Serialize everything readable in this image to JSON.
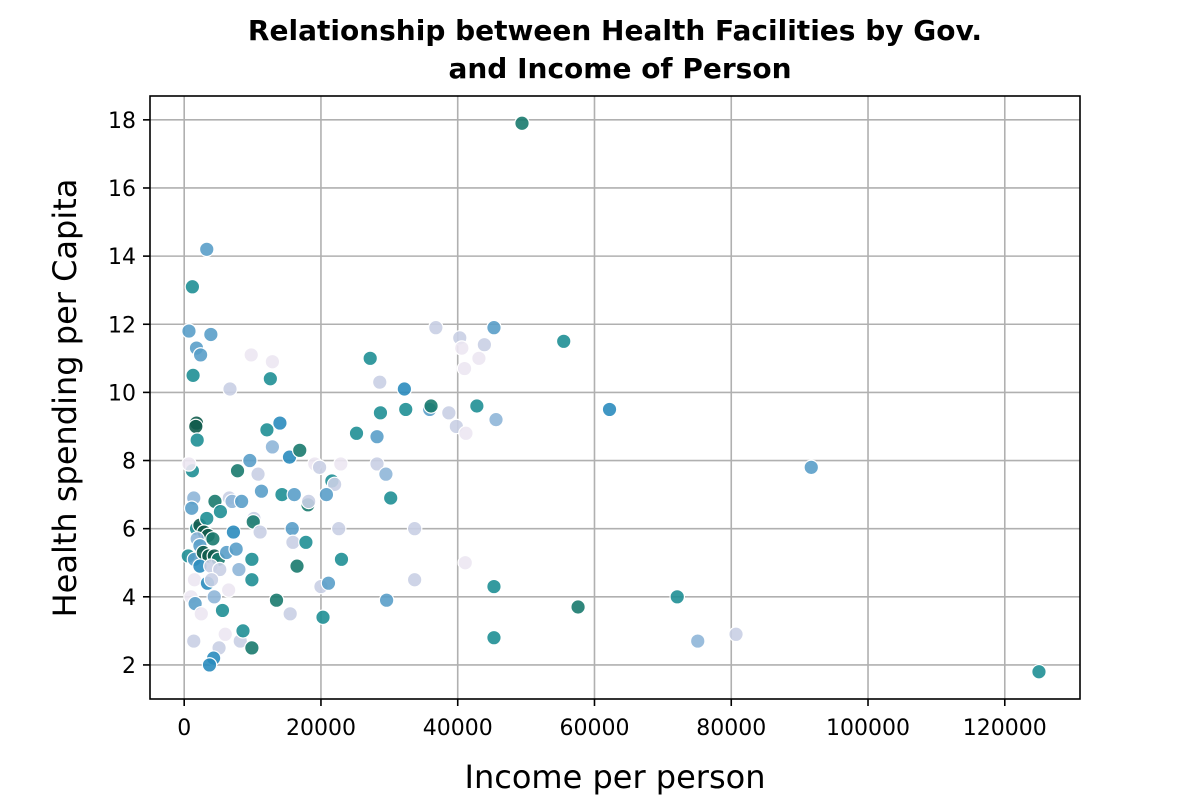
{
  "chart_data": {
    "type": "scatter",
    "title_line1": "Relationship between Health Facilities by Gov.",
    "title_line2": "and Income of Person",
    "xlabel": "Income per person",
    "ylabel": "Health spending per Capita",
    "xlim": [
      -5000,
      131000
    ],
    "ylim": [
      1.0,
      18.7
    ],
    "x_ticks": [
      0,
      20000,
      40000,
      60000,
      80000,
      100000,
      120000
    ],
    "x_tick_labels": [
      "0",
      "20000",
      "40000",
      "60000",
      "80000",
      "100000",
      "120000"
    ],
    "y_ticks": [
      2,
      4,
      6,
      8,
      10,
      12,
      14,
      16,
      18
    ],
    "y_tick_labels": [
      "2",
      "4",
      "6",
      "8",
      "10",
      "12",
      "14",
      "16",
      "18"
    ],
    "grid": true,
    "colors": {
      "very_light": "#ece7f2",
      "light": "#c9cfe4",
      "light_blue": "#8fb6d8",
      "mid_blue": "#5a9ec9",
      "blue": "#2b8cbe",
      "teal": "#1f8f95",
      "green_teal": "#1a7a6e",
      "dark_green": "#115c4c",
      "grid": "#b0b0b0"
    },
    "points": [
      {
        "x": 49400,
        "y": 17.9,
        "c": "green_teal"
      },
      {
        "x": 3300,
        "y": 14.2,
        "c": "mid_blue"
      },
      {
        "x": 1200,
        "y": 13.1,
        "c": "teal"
      },
      {
        "x": 700,
        "y": 11.8,
        "c": "mid_blue"
      },
      {
        "x": 1800,
        "y": 11.3,
        "c": "mid_blue"
      },
      {
        "x": 2400,
        "y": 11.1,
        "c": "mid_blue"
      },
      {
        "x": 3900,
        "y": 11.7,
        "c": "mid_blue"
      },
      {
        "x": 1300,
        "y": 10.5,
        "c": "teal"
      },
      {
        "x": 6700,
        "y": 10.1,
        "c": "light"
      },
      {
        "x": 9800,
        "y": 11.1,
        "c": "very_light"
      },
      {
        "x": 12900,
        "y": 10.9,
        "c": "very_light"
      },
      {
        "x": 12600,
        "y": 10.4,
        "c": "teal"
      },
      {
        "x": 1800,
        "y": 9.1,
        "c": "dark_green"
      },
      {
        "x": 1700,
        "y": 9.0,
        "c": "dark_green"
      },
      {
        "x": 1900,
        "y": 8.6,
        "c": "teal"
      },
      {
        "x": 1200,
        "y": 7.7,
        "c": "teal"
      },
      {
        "x": 700,
        "y": 7.9,
        "c": "very_light"
      },
      {
        "x": 7800,
        "y": 7.7,
        "c": "green_teal"
      },
      {
        "x": 9600,
        "y": 8.0,
        "c": "mid_blue"
      },
      {
        "x": 12100,
        "y": 8.9,
        "c": "teal"
      },
      {
        "x": 12900,
        "y": 8.4,
        "c": "light_blue"
      },
      {
        "x": 14000,
        "y": 9.1,
        "c": "blue"
      },
      {
        "x": 15400,
        "y": 8.1,
        "c": "blue"
      },
      {
        "x": 16900,
        "y": 8.3,
        "c": "green_teal"
      },
      {
        "x": 10800,
        "y": 7.6,
        "c": "light"
      },
      {
        "x": 11300,
        "y": 7.1,
        "c": "mid_blue"
      },
      {
        "x": 14300,
        "y": 7.0,
        "c": "teal"
      },
      {
        "x": 16100,
        "y": 7.0,
        "c": "mid_blue"
      },
      {
        "x": 18100,
        "y": 6.7,
        "c": "green_teal"
      },
      {
        "x": 18200,
        "y": 6.8,
        "c": "light"
      },
      {
        "x": 19100,
        "y": 7.9,
        "c": "very_light"
      },
      {
        "x": 19800,
        "y": 7.8,
        "c": "light"
      },
      {
        "x": 21600,
        "y": 7.4,
        "c": "teal"
      },
      {
        "x": 22000,
        "y": 7.3,
        "c": "light"
      },
      {
        "x": 22900,
        "y": 7.9,
        "c": "very_light"
      },
      {
        "x": 20800,
        "y": 7.0,
        "c": "mid_blue"
      },
      {
        "x": 1400,
        "y": 6.9,
        "c": "light_blue"
      },
      {
        "x": 1100,
        "y": 6.6,
        "c": "mid_blue"
      },
      {
        "x": 1800,
        "y": 6.0,
        "c": "teal"
      },
      {
        "x": 2300,
        "y": 6.1,
        "c": "dark_green"
      },
      {
        "x": 3300,
        "y": 6.3,
        "c": "teal"
      },
      {
        "x": 4500,
        "y": 6.8,
        "c": "green_teal"
      },
      {
        "x": 5300,
        "y": 6.5,
        "c": "teal"
      },
      {
        "x": 6600,
        "y": 6.9,
        "c": "light"
      },
      {
        "x": 7000,
        "y": 6.8,
        "c": "light_blue"
      },
      {
        "x": 8400,
        "y": 6.8,
        "c": "mid_blue"
      },
      {
        "x": 10200,
        "y": 6.3,
        "c": "light"
      },
      {
        "x": 10100,
        "y": 6.2,
        "c": "green_teal"
      },
      {
        "x": 11100,
        "y": 5.9,
        "c": "light"
      },
      {
        "x": 7200,
        "y": 5.9,
        "c": "blue"
      },
      {
        "x": 2900,
        "y": 5.9,
        "c": "dark_green"
      },
      {
        "x": 3500,
        "y": 5.8,
        "c": "dark_green"
      },
      {
        "x": 4200,
        "y": 5.7,
        "c": "green_teal"
      },
      {
        "x": 1900,
        "y": 5.7,
        "c": "light_blue"
      },
      {
        "x": 2300,
        "y": 5.5,
        "c": "mid_blue"
      },
      {
        "x": 600,
        "y": 5.2,
        "c": "teal"
      },
      {
        "x": 1500,
        "y": 5.1,
        "c": "mid_blue"
      },
      {
        "x": 2800,
        "y": 5.3,
        "c": "dark_green"
      },
      {
        "x": 3600,
        "y": 5.2,
        "c": "dark_green"
      },
      {
        "x": 4400,
        "y": 5.2,
        "c": "dark_green"
      },
      {
        "x": 5000,
        "y": 5.1,
        "c": "green_teal"
      },
      {
        "x": 6200,
        "y": 5.3,
        "c": "mid_blue"
      },
      {
        "x": 7600,
        "y": 5.4,
        "c": "mid_blue"
      },
      {
        "x": 9900,
        "y": 5.1,
        "c": "teal"
      },
      {
        "x": 2300,
        "y": 4.9,
        "c": "blue"
      },
      {
        "x": 3900,
        "y": 4.9,
        "c": "light"
      },
      {
        "x": 5200,
        "y": 4.8,
        "c": "light"
      },
      {
        "x": 8000,
        "y": 4.8,
        "c": "light_blue"
      },
      {
        "x": 1500,
        "y": 4.5,
        "c": "very_light"
      },
      {
        "x": 3400,
        "y": 4.4,
        "c": "blue"
      },
      {
        "x": 4000,
        "y": 4.5,
        "c": "light"
      },
      {
        "x": 9900,
        "y": 4.5,
        "c": "teal"
      },
      {
        "x": 1000,
        "y": 4.0,
        "c": "very_light"
      },
      {
        "x": 1600,
        "y": 3.8,
        "c": "mid_blue"
      },
      {
        "x": 4400,
        "y": 4.0,
        "c": "light_blue"
      },
      {
        "x": 5600,
        "y": 3.6,
        "c": "teal"
      },
      {
        "x": 6500,
        "y": 4.2,
        "c": "very_light"
      },
      {
        "x": 2500,
        "y": 3.5,
        "c": "very_light"
      },
      {
        "x": 1400,
        "y": 2.7,
        "c": "light"
      },
      {
        "x": 5100,
        "y": 2.5,
        "c": "light"
      },
      {
        "x": 6000,
        "y": 2.9,
        "c": "very_light"
      },
      {
        "x": 4300,
        "y": 2.2,
        "c": "blue"
      },
      {
        "x": 3700,
        "y": 2.0,
        "c": "blue"
      },
      {
        "x": 8200,
        "y": 2.7,
        "c": "light"
      },
      {
        "x": 8600,
        "y": 3.0,
        "c": "teal"
      },
      {
        "x": 9900,
        "y": 2.5,
        "c": "green_teal"
      },
      {
        "x": 13500,
        "y": 3.9,
        "c": "green_teal"
      },
      {
        "x": 15500,
        "y": 3.5,
        "c": "light"
      },
      {
        "x": 15800,
        "y": 6.0,
        "c": "mid_blue"
      },
      {
        "x": 15900,
        "y": 5.6,
        "c": "light"
      },
      {
        "x": 16500,
        "y": 4.9,
        "c": "green_teal"
      },
      {
        "x": 17800,
        "y": 5.6,
        "c": "teal"
      },
      {
        "x": 20000,
        "y": 4.3,
        "c": "light"
      },
      {
        "x": 20300,
        "y": 3.4,
        "c": "teal"
      },
      {
        "x": 21100,
        "y": 4.4,
        "c": "mid_blue"
      },
      {
        "x": 22600,
        "y": 6.0,
        "c": "light"
      },
      {
        "x": 23000,
        "y": 5.1,
        "c": "teal"
      },
      {
        "x": 25200,
        "y": 8.8,
        "c": "teal"
      },
      {
        "x": 27200,
        "y": 11.0,
        "c": "teal"
      },
      {
        "x": 28200,
        "y": 7.9,
        "c": "light"
      },
      {
        "x": 28200,
        "y": 8.7,
        "c": "mid_blue"
      },
      {
        "x": 28600,
        "y": 10.3,
        "c": "light"
      },
      {
        "x": 28700,
        "y": 9.4,
        "c": "teal"
      },
      {
        "x": 29500,
        "y": 7.6,
        "c": "light_blue"
      },
      {
        "x": 30200,
        "y": 6.9,
        "c": "teal"
      },
      {
        "x": 29600,
        "y": 3.9,
        "c": "mid_blue"
      },
      {
        "x": 32200,
        "y": 10.1,
        "c": "blue"
      },
      {
        "x": 32400,
        "y": 9.5,
        "c": "teal"
      },
      {
        "x": 33700,
        "y": 6.0,
        "c": "light"
      },
      {
        "x": 33700,
        "y": 4.5,
        "c": "light"
      },
      {
        "x": 35900,
        "y": 9.5,
        "c": "mid_blue"
      },
      {
        "x": 36100,
        "y": 9.6,
        "c": "green_teal"
      },
      {
        "x": 36800,
        "y": 11.9,
        "c": "light"
      },
      {
        "x": 38700,
        "y": 9.4,
        "c": "light"
      },
      {
        "x": 39800,
        "y": 9.0,
        "c": "light"
      },
      {
        "x": 40300,
        "y": 11.6,
        "c": "light"
      },
      {
        "x": 40600,
        "y": 11.3,
        "c": "very_light"
      },
      {
        "x": 41000,
        "y": 10.7,
        "c": "very_light"
      },
      {
        "x": 41200,
        "y": 8.8,
        "c": "very_light"
      },
      {
        "x": 41100,
        "y": 5.0,
        "c": "very_light"
      },
      {
        "x": 42800,
        "y": 9.6,
        "c": "teal"
      },
      {
        "x": 43100,
        "y": 11.0,
        "c": "very_light"
      },
      {
        "x": 43900,
        "y": 11.4,
        "c": "light"
      },
      {
        "x": 45300,
        "y": 11.9,
        "c": "mid_blue"
      },
      {
        "x": 45600,
        "y": 9.2,
        "c": "light_blue"
      },
      {
        "x": 45300,
        "y": 4.3,
        "c": "teal"
      },
      {
        "x": 45300,
        "y": 2.8,
        "c": "teal"
      },
      {
        "x": 55500,
        "y": 11.5,
        "c": "teal"
      },
      {
        "x": 57600,
        "y": 3.7,
        "c": "green_teal"
      },
      {
        "x": 62200,
        "y": 9.5,
        "c": "blue"
      },
      {
        "x": 72100,
        "y": 4.0,
        "c": "teal"
      },
      {
        "x": 75100,
        "y": 2.7,
        "c": "light_blue"
      },
      {
        "x": 80700,
        "y": 2.9,
        "c": "light"
      },
      {
        "x": 91700,
        "y": 7.8,
        "c": "mid_blue"
      },
      {
        "x": 125000,
        "y": 1.8,
        "c": "teal"
      }
    ]
  }
}
